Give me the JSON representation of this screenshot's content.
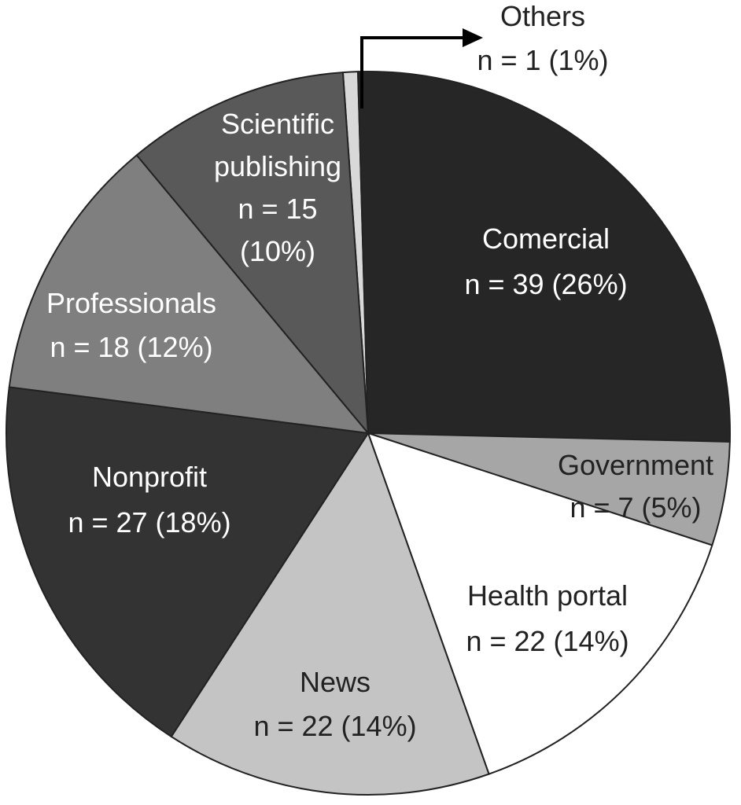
{
  "chart_data": {
    "type": "pie",
    "title": "",
    "slices": [
      {
        "label": "Others",
        "n": 1,
        "percent": "1%",
        "value_text": "n = 1 (1%)",
        "color": "#d9d9d9"
      },
      {
        "label": "Comercial",
        "n": 39,
        "percent": "26%",
        "value_text": "n = 39 (26%)",
        "color": "#262626"
      },
      {
        "label": "Government",
        "n": 7,
        "percent": "5%",
        "value_text": "n = 7 (5%)",
        "color": "#a6a6a6"
      },
      {
        "label": "Health portal",
        "n": 22,
        "percent": "14%",
        "value_text": "n = 22 (14%)",
        "color": "#ffffff"
      },
      {
        "label": "News",
        "n": 22,
        "percent": "14%",
        "value_text": "n = 22 (14%)",
        "color": "#c4c4c4"
      },
      {
        "label": "Nonprofit",
        "n": 27,
        "percent": "18%",
        "value_text": "n = 27 (18%)",
        "color": "#333333"
      },
      {
        "label": "Professionals",
        "n": 18,
        "percent": "12%",
        "value_text": "n = 18 (12%)",
        "color": "#7f7f7f"
      },
      {
        "label": "Scientific publishing",
        "label_lines": [
          "Scientific",
          "publishing"
        ],
        "n": 15,
        "percent": "10%",
        "value_lines": [
          "n = 15",
          "(10%)"
        ],
        "value_text": "n = 15 (10%)",
        "color": "#595959"
      }
    ],
    "legend": "none"
  }
}
